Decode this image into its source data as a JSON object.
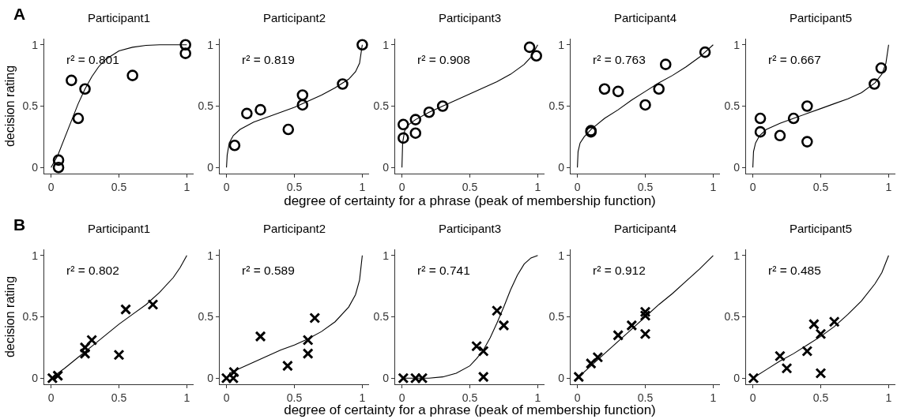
{
  "chart_data": [
    {
      "type": "scatter",
      "title": "Participant1",
      "ylabel": "decision rating",
      "annotations": [
        "r² = 0.801",
        "A"
      ],
      "xlim": [
        -0.05,
        1.05
      ],
      "ylim": [
        -0.05,
        1.05
      ],
      "xticks": [
        0,
        0.5,
        1
      ],
      "yticks": [
        0,
        0.5,
        1
      ],
      "grid": false,
      "series": [
        {
          "type": "scatter",
          "marker": "circle",
          "color": "#000000",
          "x": [
            0.055,
            0.055,
            0.15,
            0.2,
            0.25,
            0.6,
            0.99,
            0.99
          ],
          "values": [
            0,
            0.06,
            0.71,
            0.4,
            0.64,
            0.75,
            1.0,
            0.93
          ]
        },
        {
          "type": "line",
          "color": "#000000",
          "x": [
            0,
            0.05,
            0.1,
            0.15,
            0.2,
            0.25,
            0.3,
            0.35,
            0.4,
            0.5,
            0.6,
            0.7,
            0.8,
            1
          ],
          "values": [
            0,
            0.1,
            0.24,
            0.38,
            0.52,
            0.64,
            0.74,
            0.82,
            0.88,
            0.95,
            0.98,
            0.995,
            1,
            1
          ]
        }
      ]
    },
    {
      "type": "scatter",
      "title": "Participant2",
      "annotations": [
        "r² = 0.819"
      ],
      "xlim": [
        -0.05,
        1.05
      ],
      "ylim": [
        -0.05,
        1.05
      ],
      "xticks": [
        0,
        0.5,
        1
      ],
      "yticks": [
        0,
        0.5,
        1
      ],
      "grid": false,
      "series": [
        {
          "type": "scatter",
          "marker": "circle",
          "color": "#000000",
          "x": [
            0.06,
            0.15,
            0.25,
            0.455,
            0.56,
            0.56,
            0.855,
            1.0
          ],
          "values": [
            0.18,
            0.44,
            0.47,
            0.31,
            0.51,
            0.59,
            0.68,
            1.0
          ]
        },
        {
          "type": "line",
          "color": "#000000",
          "x": [
            0,
            0.005,
            0.02,
            0.05,
            0.1,
            0.2,
            0.3,
            0.4,
            0.5,
            0.6,
            0.7,
            0.8,
            0.9,
            0.95,
            0.98,
            1
          ],
          "values": [
            0,
            0.1,
            0.2,
            0.26,
            0.31,
            0.37,
            0.41,
            0.45,
            0.49,
            0.54,
            0.59,
            0.65,
            0.72,
            0.78,
            0.85,
            1
          ]
        }
      ]
    },
    {
      "type": "scatter",
      "title": "Participant3",
      "xlabel": "degree of certainty for a phrase (peak of membership function)",
      "annotations": [
        "r² = 0.908"
      ],
      "xlim": [
        -0.05,
        1.05
      ],
      "ylim": [
        -0.05,
        1.05
      ],
      "xticks": [
        0,
        0.5,
        1
      ],
      "yticks": [
        0,
        0.5,
        1
      ],
      "grid": false,
      "series": [
        {
          "type": "scatter",
          "marker": "circle",
          "color": "#000000",
          "x": [
            0.01,
            0.01,
            0.1,
            0.1,
            0.2,
            0.3,
            0.94,
            0.99
          ],
          "values": [
            0.35,
            0.24,
            0.39,
            0.28,
            0.45,
            0.5,
            0.98,
            0.91
          ]
        },
        {
          "type": "line",
          "color": "#000000",
          "x": [
            0,
            0.005,
            0.02,
            0.05,
            0.1,
            0.2,
            0.3,
            0.4,
            0.5,
            0.6,
            0.7,
            0.8,
            0.9,
            0.95,
            1
          ],
          "values": [
            0,
            0.2,
            0.3,
            0.35,
            0.39,
            0.45,
            0.5,
            0.55,
            0.6,
            0.65,
            0.7,
            0.76,
            0.84,
            0.9,
            1
          ]
        }
      ]
    },
    {
      "type": "scatter",
      "title": "Participant4",
      "annotations": [
        "r² = 0.763"
      ],
      "xlim": [
        -0.05,
        1.05
      ],
      "ylim": [
        -0.05,
        1.05
      ],
      "xticks": [
        0,
        0.5,
        1
      ],
      "yticks": [
        0,
        0.5,
        1
      ],
      "grid": false,
      "series": [
        {
          "type": "scatter",
          "marker": "circle",
          "color": "#000000",
          "x": [
            0.1,
            0.1,
            0.2,
            0.3,
            0.5,
            0.6,
            0.65,
            0.94
          ],
          "values": [
            0.29,
            0.3,
            0.64,
            0.62,
            0.51,
            0.64,
            0.84,
            0.94
          ]
        },
        {
          "type": "line",
          "color": "#000000",
          "x": [
            0,
            0.005,
            0.02,
            0.05,
            0.1,
            0.2,
            0.3,
            0.4,
            0.5,
            0.6,
            0.7,
            0.8,
            0.9,
            1
          ],
          "values": [
            0,
            0.13,
            0.2,
            0.25,
            0.31,
            0.4,
            0.47,
            0.55,
            0.62,
            0.69,
            0.75,
            0.82,
            0.9,
            1
          ]
        }
      ]
    },
    {
      "type": "scatter",
      "title": "Participant5",
      "annotations": [
        "r² = 0.667"
      ],
      "xlim": [
        -0.05,
        1.05
      ],
      "ylim": [
        -0.05,
        1.05
      ],
      "xticks": [
        0,
        0.5,
        1
      ],
      "yticks": [
        0,
        0.5,
        1
      ],
      "grid": false,
      "series": [
        {
          "type": "scatter",
          "marker": "circle",
          "color": "#000000",
          "x": [
            0.055,
            0.055,
            0.2,
            0.3,
            0.4,
            0.4,
            0.895,
            0.945
          ],
          "values": [
            0.4,
            0.29,
            0.26,
            0.4,
            0.5,
            0.21,
            0.68,
            0.81
          ]
        },
        {
          "type": "line",
          "color": "#000000",
          "x": [
            0,
            0.005,
            0.02,
            0.05,
            0.1,
            0.2,
            0.3,
            0.4,
            0.5,
            0.6,
            0.7,
            0.8,
            0.9,
            0.95,
            0.98,
            1
          ],
          "values": [
            0,
            0.13,
            0.2,
            0.26,
            0.31,
            0.36,
            0.4,
            0.44,
            0.48,
            0.52,
            0.56,
            0.61,
            0.69,
            0.76,
            0.85,
            1
          ]
        }
      ]
    },
    {
      "type": "scatter",
      "title": "Participant1",
      "ylabel": "decision rating",
      "annotations": [
        "r² = 0.802",
        "B"
      ],
      "xlim": [
        -0.05,
        1.05
      ],
      "ylim": [
        -0.05,
        1.05
      ],
      "xticks": [
        0,
        0.5,
        1
      ],
      "yticks": [
        0,
        0.5,
        1
      ],
      "grid": false,
      "series": [
        {
          "type": "scatter",
          "marker": "cross",
          "color": "#000000",
          "x": [
            0.01,
            0.05,
            0.25,
            0.25,
            0.3,
            0.5,
            0.55,
            0.75
          ],
          "values": [
            0,
            0.02,
            0.25,
            0.2,
            0.31,
            0.19,
            0.56,
            0.6
          ]
        },
        {
          "type": "line",
          "color": "#000000",
          "x": [
            0,
            0.1,
            0.2,
            0.3,
            0.4,
            0.5,
            0.6,
            0.7,
            0.8,
            0.9,
            0.95,
            1
          ],
          "values": [
            0,
            0.08,
            0.17,
            0.26,
            0.35,
            0.44,
            0.52,
            0.6,
            0.7,
            0.82,
            0.9,
            1
          ]
        }
      ]
    },
    {
      "type": "scatter",
      "title": "Participant2",
      "annotations": [
        "r² = 0.589"
      ],
      "xlim": [
        -0.05,
        1.05
      ],
      "ylim": [
        -0.05,
        1.05
      ],
      "xticks": [
        0,
        0.5,
        1
      ],
      "yticks": [
        0,
        0.5,
        1
      ],
      "grid": false,
      "series": [
        {
          "type": "scatter",
          "marker": "cross",
          "color": "#000000",
          "x": [
            0,
            0.05,
            0.055,
            0.25,
            0.45,
            0.6,
            0.6,
            0.65
          ],
          "values": [
            0,
            0,
            0.05,
            0.34,
            0.1,
            0.31,
            0.2,
            0.49
          ]
        },
        {
          "type": "line",
          "color": "#000000",
          "x": [
            0.02,
            0.1,
            0.2,
            0.3,
            0.4,
            0.5,
            0.6,
            0.7,
            0.8,
            0.9,
            0.95,
            0.98,
            1
          ],
          "values": [
            0.04,
            0.08,
            0.13,
            0.18,
            0.23,
            0.27,
            0.32,
            0.38,
            0.46,
            0.58,
            0.68,
            0.8,
            1
          ]
        }
      ]
    },
    {
      "type": "scatter",
      "title": "Participant3",
      "xlabel": "degree of certainty for a phrase (peak of membership function)",
      "annotations": [
        "r² = 0.741"
      ],
      "xlim": [
        -0.05,
        1.05
      ],
      "ylim": [
        -0.05,
        1.05
      ],
      "xticks": [
        0,
        0.5,
        1
      ],
      "yticks": [
        0,
        0.5,
        1
      ],
      "grid": false,
      "series": [
        {
          "type": "scatter",
          "marker": "cross",
          "color": "#000000",
          "x": [
            0.01,
            0.1,
            0.15,
            0.55,
            0.6,
            0.6,
            0.7,
            0.75
          ],
          "values": [
            0,
            0,
            0,
            0.26,
            0.22,
            0.01,
            0.55,
            0.43
          ]
        },
        {
          "type": "line",
          "color": "#000000",
          "x": [
            0,
            0.2,
            0.3,
            0.4,
            0.5,
            0.55,
            0.6,
            0.65,
            0.7,
            0.75,
            0.8,
            0.85,
            0.9,
            0.95,
            1
          ],
          "values": [
            0,
            0,
            0.01,
            0.04,
            0.1,
            0.16,
            0.23,
            0.33,
            0.45,
            0.58,
            0.72,
            0.84,
            0.93,
            0.98,
            1
          ]
        }
      ]
    },
    {
      "type": "scatter",
      "title": "Participant4",
      "annotations": [
        "r² = 0.912"
      ],
      "xlim": [
        -0.05,
        1.05
      ],
      "ylim": [
        -0.05,
        1.05
      ],
      "xticks": [
        0,
        0.5,
        1
      ],
      "yticks": [
        0,
        0.5,
        1
      ],
      "grid": false,
      "series": [
        {
          "type": "scatter",
          "marker": "cross",
          "color": "#000000",
          "x": [
            0.01,
            0.1,
            0.15,
            0.3,
            0.4,
            0.5,
            0.5,
            0.5
          ],
          "values": [
            0.01,
            0.12,
            0.17,
            0.35,
            0.43,
            0.54,
            0.51,
            0.36
          ]
        },
        {
          "type": "line",
          "color": "#000000",
          "x": [
            0,
            0.1,
            0.2,
            0.3,
            0.4,
            0.5,
            0.6,
            0.7,
            0.8,
            0.9,
            1
          ],
          "values": [
            0,
            0.1,
            0.2,
            0.3,
            0.4,
            0.5,
            0.6,
            0.69,
            0.79,
            0.89,
            1
          ]
        }
      ]
    },
    {
      "type": "scatter",
      "title": "Participant5",
      "annotations": [
        "r² = 0.485"
      ],
      "xlim": [
        -0.05,
        1.05
      ],
      "ylim": [
        -0.05,
        1.05
      ],
      "xticks": [
        0,
        0.5,
        1
      ],
      "yticks": [
        0,
        0.5,
        1
      ],
      "grid": false,
      "series": [
        {
          "type": "scatter",
          "marker": "cross",
          "color": "#000000",
          "x": [
            0.005,
            0.2,
            0.25,
            0.4,
            0.45,
            0.5,
            0.5,
            0.6
          ],
          "values": [
            0,
            0.18,
            0.08,
            0.22,
            0.44,
            0.36,
            0.04,
            0.46
          ]
        },
        {
          "type": "line",
          "color": "#000000",
          "x": [
            0,
            0.1,
            0.2,
            0.3,
            0.4,
            0.5,
            0.6,
            0.7,
            0.8,
            0.9,
            0.95,
            1
          ],
          "values": [
            0,
            0.07,
            0.14,
            0.2,
            0.27,
            0.34,
            0.42,
            0.52,
            0.63,
            0.77,
            0.86,
            1
          ]
        }
      ]
    }
  ]
}
